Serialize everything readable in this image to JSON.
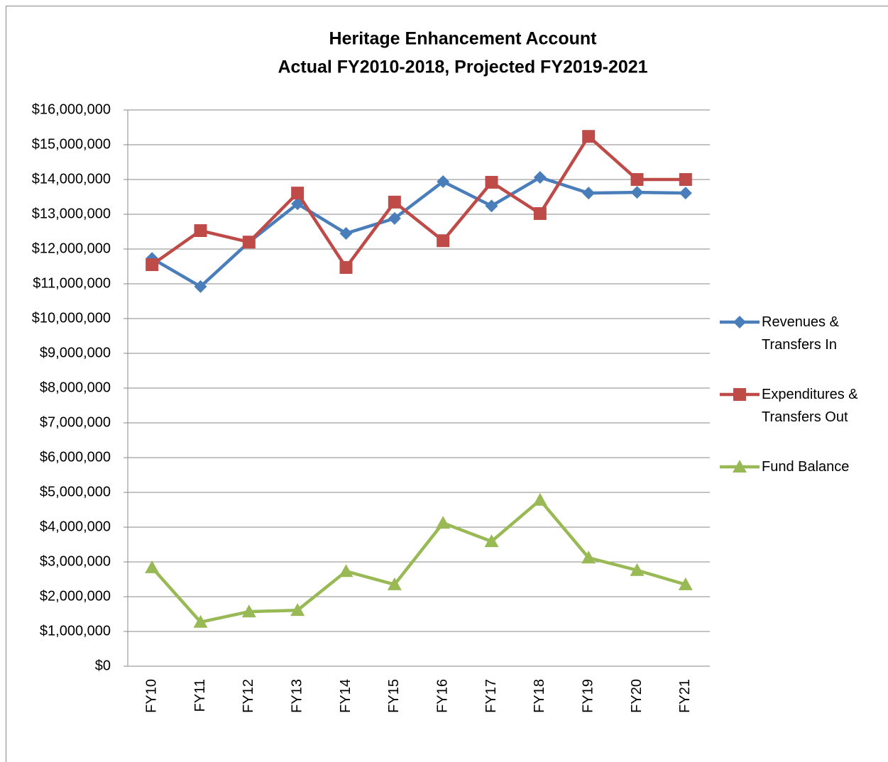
{
  "chart_data": {
    "type": "line",
    "title": "Heritage Enhancement Account",
    "subtitle": "Actual FY2010-2018, Projected FY2019-2021",
    "categories": [
      "FY10",
      "FY11",
      "FY12",
      "FY13",
      "FY14",
      "FY15",
      "FY16",
      "FY17",
      "FY18",
      "FY19",
      "FY20",
      "FY21"
    ],
    "series": [
      {
        "name": "Revenues & Transfers In",
        "color": "#4a7ebb",
        "marker": "diamond",
        "values": [
          11730000,
          10920000,
          12200000,
          13300000,
          12450000,
          12880000,
          13940000,
          13240000,
          14060000,
          13610000,
          13630000,
          13610000
        ]
      },
      {
        "name": "Expenditures & Transfers Out",
        "color": "#be4b48",
        "marker": "square",
        "values": [
          11550000,
          12530000,
          12200000,
          13610000,
          11470000,
          13350000,
          12240000,
          13920000,
          13020000,
          15240000,
          14000000,
          14000000
        ]
      },
      {
        "name": "Fund Balance",
        "color": "#98b954",
        "marker": "triangle",
        "values": [
          2840000,
          1270000,
          1570000,
          1610000,
          2730000,
          2350000,
          4120000,
          3590000,
          4780000,
          3120000,
          2760000,
          2350000
        ]
      }
    ],
    "ylim": [
      0,
      16000000
    ],
    "yticks": [
      {
        "value": 0,
        "label": "$0"
      },
      {
        "value": 1000000,
        "label": "$1,000,000"
      },
      {
        "value": 2000000,
        "label": "$2,000,000"
      },
      {
        "value": 3000000,
        "label": "$3,000,000"
      },
      {
        "value": 4000000,
        "label": "$4,000,000"
      },
      {
        "value": 5000000,
        "label": "$5,000,000"
      },
      {
        "value": 6000000,
        "label": "$6,000,000"
      },
      {
        "value": 7000000,
        "label": "$7,000,000"
      },
      {
        "value": 8000000,
        "label": "$8,000,000"
      },
      {
        "value": 9000000,
        "label": "$9,000,000"
      },
      {
        "value": 10000000,
        "label": "$10,000,000"
      },
      {
        "value": 11000000,
        "label": "$11,000,000"
      },
      {
        "value": 12000000,
        "label": "$12,000,000"
      },
      {
        "value": 13000000,
        "label": "$13,000,000"
      },
      {
        "value": 14000000,
        "label": "$14,000,000"
      },
      {
        "value": 15000000,
        "label": "$15,000,000"
      },
      {
        "value": 16000000,
        "label": "$16,000,000"
      }
    ],
    "grid": true,
    "legend": "right"
  }
}
